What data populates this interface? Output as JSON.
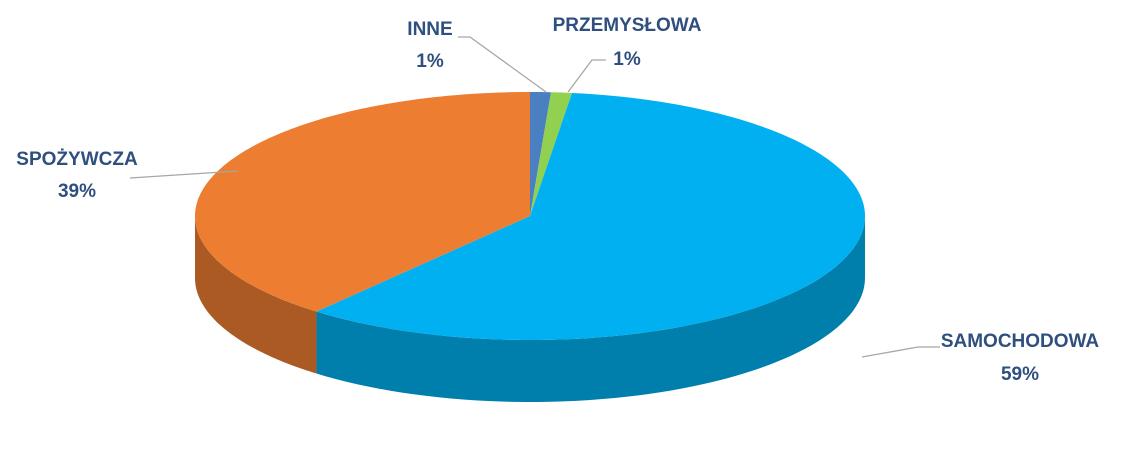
{
  "chart_data": {
    "type": "pie",
    "categories": [
      "INNE",
      "PRZEMYSŁOWA",
      "SAMOCHODOWA",
      "SPOŻYWCZA"
    ],
    "values": [
      1,
      1,
      59,
      39
    ],
    "value_labels": [
      "1%",
      "1%",
      "59%",
      "39%"
    ],
    "colors": [
      "#4a7fc1",
      "#92d050",
      "#00b0f0",
      "#ed7d31"
    ]
  }
}
